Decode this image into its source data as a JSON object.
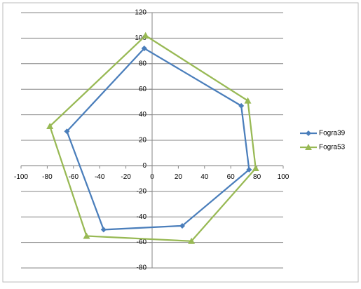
{
  "chart_data": {
    "type": "scatter-line",
    "xlim": [
      -100,
      100
    ],
    "xticks": [
      -100,
      -80,
      -60,
      -40,
      -20,
      0,
      20,
      40,
      60,
      80,
      100
    ],
    "ylim": [
      -80,
      120
    ],
    "yticks": [
      -80,
      -60,
      -40,
      -20,
      0,
      20,
      40,
      60,
      80,
      100,
      120
    ],
    "grid": true,
    "legend": "right",
    "series": [
      {
        "name": "Fogra39",
        "color": "#4a7ebb",
        "marker": "diamond",
        "x": [
          -6,
          68,
          74,
          23,
          -37,
          -65,
          -6
        ],
        "values": [
          92,
          47,
          -3,
          -47,
          -50,
          27,
          92
        ]
      },
      {
        "name": "Fogra53",
        "color": "#98b954",
        "marker": "triangle",
        "x": [
          -5,
          73,
          79,
          30,
          -50,
          -78,
          -5
        ],
        "values": [
          102,
          51,
          -2,
          -59,
          -55,
          31,
          102
        ]
      }
    ]
  }
}
